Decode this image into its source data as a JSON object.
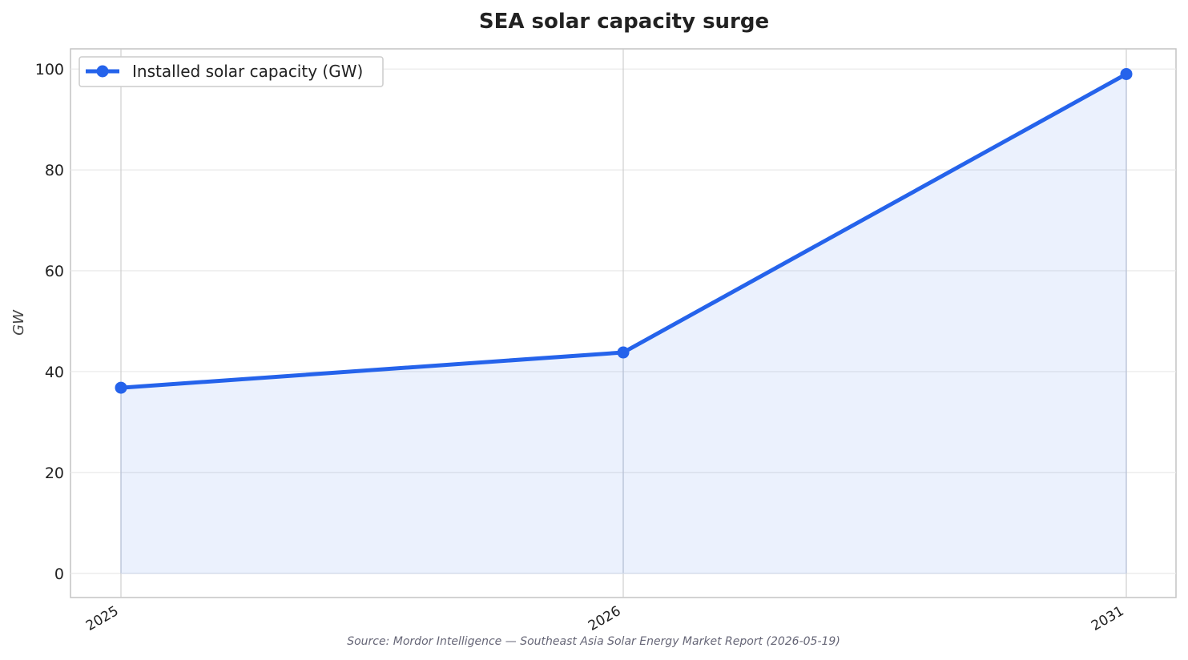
{
  "chart_data": {
    "type": "line",
    "title": "SEA solar capacity surge",
    "xlabel": "",
    "ylabel": "GW",
    "x": [
      "2025",
      "2026",
      "2031"
    ],
    "series": [
      {
        "name": "Installed solar capacity (GW)",
        "values": [
          36.8,
          43.8,
          99.0
        ]
      }
    ],
    "ylim": [
      -4.8,
      104
    ],
    "yticks": [
      "0",
      "20",
      "40",
      "60",
      "80",
      "100"
    ],
    "ytick_values": [
      0,
      20,
      40,
      60,
      80,
      100
    ],
    "grid": true,
    "area_fill": true,
    "legend_position": "top-left",
    "colors": {
      "line": "#2563eb",
      "fill": "#2563eb",
      "grid": "#e8e8e8",
      "spine": "#c4c4c4"
    },
    "source": "Source: Mordor Intelligence — Southeast Asia Solar Energy Market Report (2026-05-19)"
  }
}
